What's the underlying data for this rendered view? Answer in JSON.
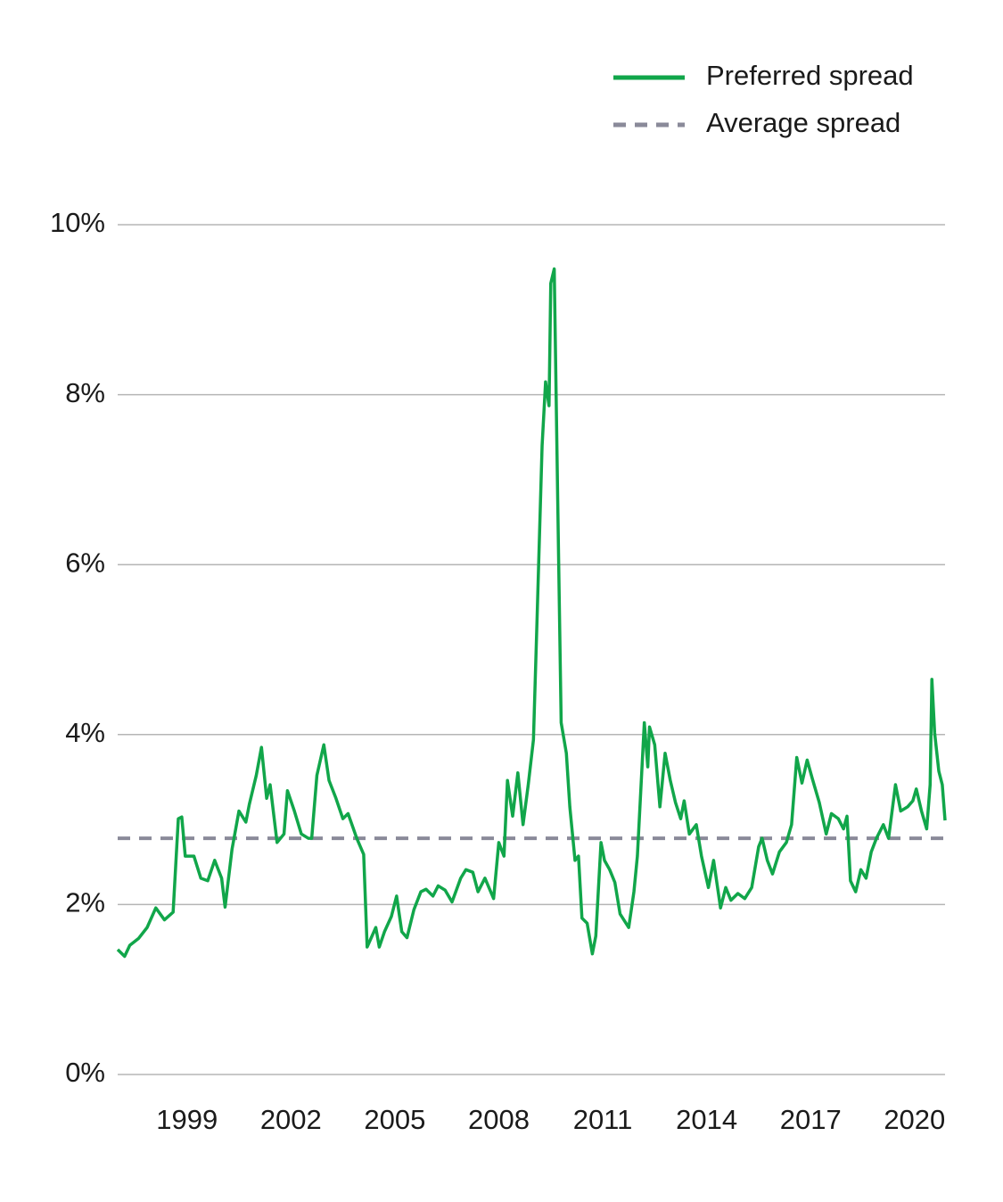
{
  "chart_data": {
    "type": "line",
    "series": [
      {
        "name": "Preferred spread",
        "color": "#11a64a",
        "dash": false,
        "x": [
          1997.0,
          1997.2,
          1997.35,
          1997.6,
          1997.85,
          1998.1,
          1998.35,
          1998.6,
          1998.75,
          1998.85,
          1998.95,
          1999.2,
          1999.4,
          1999.6,
          1999.8,
          2000.0,
          2000.1,
          2000.3,
          2000.5,
          2000.7,
          2000.8,
          2001.0,
          2001.15,
          2001.3,
          2001.4,
          2001.6,
          2001.8,
          2001.9,
          2002.1,
          2002.3,
          2002.5,
          2002.6,
          2002.75,
          2002.95,
          2003.1,
          2003.3,
          2003.5,
          2003.65,
          2003.9,
          2004.1,
          2004.2,
          2004.45,
          2004.55,
          2004.7,
          2004.9,
          2005.05,
          2005.2,
          2005.35,
          2005.55,
          2005.75,
          2005.9,
          2006.1,
          2006.25,
          2006.45,
          2006.65,
          2006.9,
          2007.05,
          2007.25,
          2007.4,
          2007.6,
          2007.85,
          2008.0,
          2008.15,
          2008.25,
          2008.4,
          2008.55,
          2008.7,
          2008.85,
          2009.0,
          2009.1,
          2009.25,
          2009.35,
          2009.45,
          2009.5,
          2009.6,
          2009.7,
          2009.8,
          2009.95,
          2010.05,
          2010.2,
          2010.3,
          2010.4,
          2010.55,
          2010.7,
          2010.8,
          2010.95,
          2011.05,
          2011.2,
          2011.35,
          2011.5,
          2011.75,
          2011.9,
          2012.0,
          2012.2,
          2012.3,
          2012.35,
          2012.5,
          2012.65,
          2012.8,
          2012.95,
          2013.1,
          2013.25,
          2013.35,
          2013.5,
          2013.7,
          2013.85,
          2014.05,
          2014.2,
          2014.4,
          2014.55,
          2014.7,
          2014.9,
          2015.1,
          2015.3,
          2015.5,
          2015.6,
          2015.75,
          2015.9,
          2016.1,
          2016.3,
          2016.45,
          2016.6,
          2016.75,
          2016.9,
          2017.05,
          2017.25,
          2017.45,
          2017.6,
          2017.8,
          2017.95,
          2018.05,
          2018.15,
          2018.3,
          2018.45,
          2018.6,
          2018.75,
          2018.9,
          2019.1,
          2019.25,
          2019.45,
          2019.6,
          2019.8,
          2019.95,
          2020.05,
          2020.2,
          2020.35,
          2020.45,
          2020.5,
          2020.58,
          2020.7,
          2020.8,
          2020.88
        ],
        "values": [
          1.47,
          1.39,
          1.52,
          1.6,
          1.73,
          1.96,
          1.82,
          1.91,
          3.01,
          3.03,
          2.57,
          2.57,
          2.31,
          2.28,
          2.52,
          2.31,
          1.97,
          2.65,
          3.1,
          2.97,
          3.18,
          3.52,
          3.85,
          3.25,
          3.41,
          2.73,
          2.83,
          3.34,
          3.1,
          2.83,
          2.78,
          2.78,
          3.52,
          3.88,
          3.46,
          3.25,
          3.01,
          3.07,
          2.78,
          2.59,
          1.5,
          1.73,
          1.5,
          1.68,
          1.86,
          2.1,
          1.68,
          1.61,
          1.94,
          2.15,
          2.18,
          2.1,
          2.22,
          2.17,
          2.03,
          2.31,
          2.41,
          2.38,
          2.15,
          2.31,
          2.07,
          2.73,
          2.57,
          3.46,
          3.04,
          3.55,
          2.94,
          3.41,
          3.94,
          5.3,
          7.4,
          8.15,
          7.87,
          9.31,
          9.48,
          6.77,
          4.14,
          3.78,
          3.15,
          2.52,
          2.57,
          1.84,
          1.78,
          1.42,
          1.63,
          2.73,
          2.52,
          2.41,
          2.26,
          1.89,
          1.73,
          2.15,
          2.57,
          4.14,
          3.62,
          4.09,
          3.88,
          3.15,
          3.78,
          3.46,
          3.2,
          3.01,
          3.22,
          2.83,
          2.94,
          2.57,
          2.2,
          2.52,
          1.96,
          2.2,
          2.05,
          2.13,
          2.07,
          2.2,
          2.68,
          2.78,
          2.52,
          2.36,
          2.62,
          2.73,
          2.94,
          3.73,
          3.43,
          3.7,
          3.48,
          3.2,
          2.83,
          3.07,
          3.01,
          2.89,
          3.04,
          2.28,
          2.15,
          2.41,
          2.31,
          2.62,
          2.78,
          2.94,
          2.78,
          3.41,
          3.1,
          3.15,
          3.22,
          3.36,
          3.1,
          2.89,
          3.41,
          4.65,
          4.02,
          3.57,
          3.41,
          2.99
        ]
      },
      {
        "name": "Average spread",
        "color": "#8a8a99",
        "dash": true,
        "x": [
          1997.0,
          2020.88
        ],
        "values": [
          2.78,
          2.78
        ]
      }
    ],
    "xlim": [
      1997.0,
      2020.88
    ],
    "xticks": [
      1999,
      2002,
      2005,
      2008,
      2011,
      2014,
      2017,
      2020
    ],
    "ylim": [
      0,
      10
    ],
    "yticks": [
      {
        "value": 0,
        "label": "0%"
      },
      {
        "value": 2,
        "label": "2%"
      },
      {
        "value": 4,
        "label": "4%"
      },
      {
        "value": 6,
        "label": "6%"
      },
      {
        "value": 8,
        "label": "8%"
      },
      {
        "value": 10,
        "label": "10%"
      }
    ],
    "grid": true,
    "legend": "top-right"
  }
}
